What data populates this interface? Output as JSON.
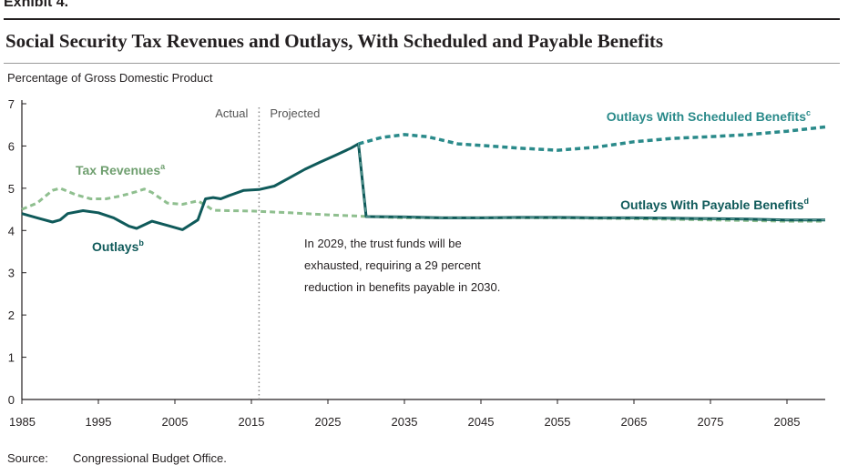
{
  "header": {
    "exhibit": "Exhibit 4.",
    "title": "Social Security Tax Revenues and Outlays, With Scheduled and Payable Benefits",
    "ylabel": "Percentage of Gross Domestic Product"
  },
  "footer": {
    "source_label": "Source:",
    "source_text": "Congressional Budget Office."
  },
  "colors": {
    "outlays": "#0f5a5a",
    "scheduled": "#2a8a8a",
    "tax_revenues": "#8fbf8f",
    "axis": "#231f20",
    "divider": "#888888"
  },
  "chart_data": {
    "type": "line",
    "title": "Social Security Tax Revenues and Outlays, With Scheduled and Payable Benefits",
    "ylabel": "Percentage of Gross Domestic Product",
    "xlabel": "",
    "xlim": [
      1985,
      2090
    ],
    "ylim": [
      0,
      7
    ],
    "x_ticks": [
      1985,
      1995,
      2005,
      2015,
      2025,
      2035,
      2045,
      2055,
      2065,
      2075,
      2085
    ],
    "y_ticks": [
      0,
      1,
      2,
      3,
      4,
      5,
      6,
      7
    ],
    "grid": false,
    "divider": {
      "x": 2016,
      "left_label": "Actual",
      "right_label": "Projected"
    },
    "annotation": {
      "lines": [
        "In 2029, the trust funds will be",
        "exhausted, requiring a 29 percent",
        "reduction in benefits payable in 2030."
      ]
    },
    "series": [
      {
        "name": "Tax Revenues",
        "superscript": "a",
        "style": "dashed",
        "points": [
          [
            1985,
            4.5
          ],
          [
            1987,
            4.65
          ],
          [
            1989,
            4.95
          ],
          [
            1990,
            5.0
          ],
          [
            1992,
            4.85
          ],
          [
            1994,
            4.75
          ],
          [
            1996,
            4.75
          ],
          [
            1998,
            4.82
          ],
          [
            2000,
            4.92
          ],
          [
            2001,
            4.98
          ],
          [
            2002,
            4.9
          ],
          [
            2004,
            4.65
          ],
          [
            2006,
            4.62
          ],
          [
            2008,
            4.7
          ],
          [
            2009,
            4.6
          ],
          [
            2010,
            4.48
          ],
          [
            2012,
            4.47
          ],
          [
            2015,
            4.46
          ],
          [
            2020,
            4.42
          ],
          [
            2025,
            4.37
          ],
          [
            2029,
            4.34
          ],
          [
            2035,
            4.3
          ],
          [
            2045,
            4.3
          ],
          [
            2055,
            4.3
          ],
          [
            2065,
            4.28
          ],
          [
            2075,
            4.25
          ],
          [
            2085,
            4.22
          ],
          [
            2090,
            4.22
          ]
        ]
      },
      {
        "name": "Outlays",
        "superscript": "b",
        "style": "solid",
        "points": [
          [
            1985,
            4.4
          ],
          [
            1987,
            4.3
          ],
          [
            1989,
            4.2
          ],
          [
            1990,
            4.25
          ],
          [
            1991,
            4.4
          ],
          [
            1993,
            4.47
          ],
          [
            1995,
            4.42
          ],
          [
            1997,
            4.3
          ],
          [
            1999,
            4.1
          ],
          [
            2000,
            4.05
          ],
          [
            2002,
            4.22
          ],
          [
            2004,
            4.12
          ],
          [
            2006,
            4.02
          ],
          [
            2008,
            4.25
          ],
          [
            2009,
            4.75
          ],
          [
            2010,
            4.78
          ],
          [
            2011,
            4.75
          ],
          [
            2012,
            4.82
          ],
          [
            2014,
            4.95
          ],
          [
            2016,
            4.97
          ],
          [
            2018,
            5.05
          ],
          [
            2020,
            5.25
          ],
          [
            2022,
            5.45
          ],
          [
            2024,
            5.62
          ],
          [
            2026,
            5.78
          ],
          [
            2028,
            5.95
          ],
          [
            2029,
            6.05
          ]
        ]
      },
      {
        "name": "Outlays With Scheduled Benefits",
        "superscript": "c",
        "style": "dashed",
        "points": [
          [
            2029,
            6.05
          ],
          [
            2032,
            6.2
          ],
          [
            2035,
            6.27
          ],
          [
            2038,
            6.22
          ],
          [
            2042,
            6.05
          ],
          [
            2046,
            6.0
          ],
          [
            2050,
            5.95
          ],
          [
            2055,
            5.9
          ],
          [
            2060,
            5.97
          ],
          [
            2065,
            6.1
          ],
          [
            2070,
            6.18
          ],
          [
            2075,
            6.22
          ],
          [
            2080,
            6.27
          ],
          [
            2085,
            6.35
          ],
          [
            2090,
            6.45
          ]
        ]
      },
      {
        "name": "Outlays With Payable Benefits",
        "superscript": "d",
        "style": "solid",
        "points": [
          [
            2029,
            6.05
          ],
          [
            2030,
            4.33
          ],
          [
            2035,
            4.32
          ],
          [
            2040,
            4.3
          ],
          [
            2045,
            4.3
          ],
          [
            2050,
            4.31
          ],
          [
            2055,
            4.31
          ],
          [
            2060,
            4.3
          ],
          [
            2065,
            4.3
          ],
          [
            2070,
            4.29
          ],
          [
            2075,
            4.28
          ],
          [
            2080,
            4.27
          ],
          [
            2085,
            4.25
          ],
          [
            2090,
            4.25
          ]
        ]
      }
    ],
    "legend_labels": {
      "tax_revenues": "Tax Revenues",
      "outlays": "Outlays",
      "scheduled": "Outlays With Scheduled Benefits",
      "payable": "Outlays With Payable Benefits"
    }
  }
}
